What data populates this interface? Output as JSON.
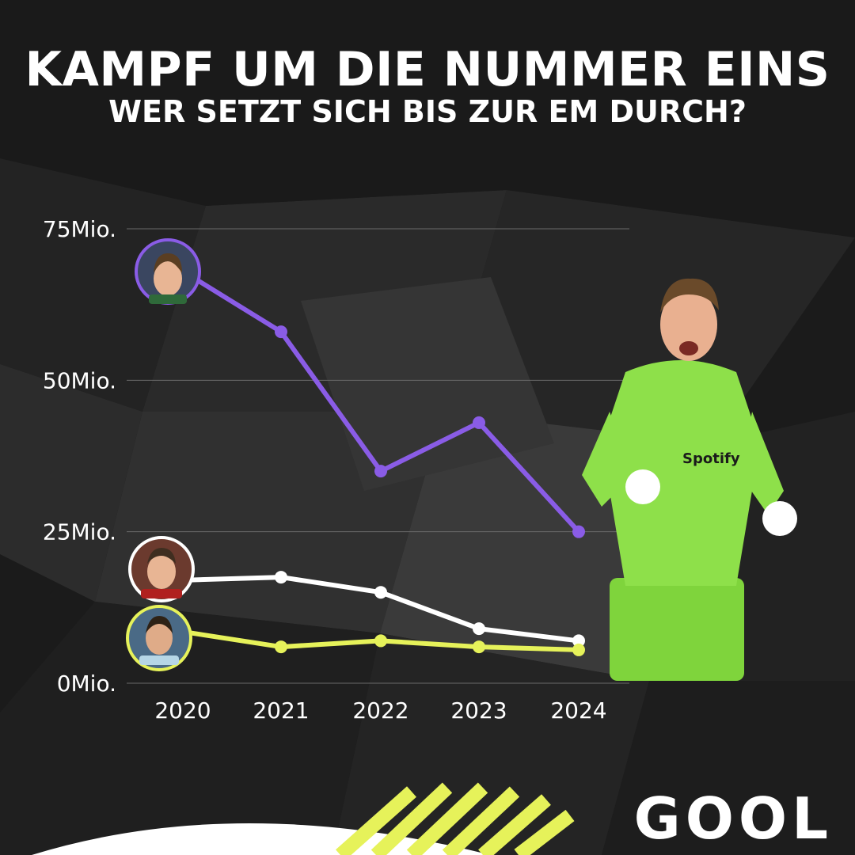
{
  "header": {
    "title": "KAMPF UM DIE NUMMER EINS",
    "subtitle": "WER SETZT SICH BIS ZUR EM DURCH?"
  },
  "brand": {
    "logo_text": "GOOL"
  },
  "colors": {
    "background": "#1b1b1b",
    "purple": "#8a5ce6",
    "white": "#ffffff",
    "yellow": "#e6f25a",
    "jersey": "#8ee04a"
  },
  "chart_data": {
    "type": "line",
    "categories": [
      "2020",
      "2021",
      "2022",
      "2023",
      "2024"
    ],
    "y_tick_labels": [
      "0Mio.",
      "25Mio.",
      "50Mio.",
      "75Mio."
    ],
    "y_ticks": [
      0,
      25,
      50,
      75
    ],
    "ylim": [
      0,
      75
    ],
    "grid": true,
    "series": [
      {
        "key": "purple",
        "color": "#8a5ce6",
        "values": [
          68,
          58,
          35,
          43,
          25
        ]
      },
      {
        "key": "white",
        "color": "#ffffff",
        "values": [
          17,
          17.5,
          15,
          9,
          7
        ]
      },
      {
        "key": "yellow",
        "color": "#e6f25a",
        "values": [
          8.5,
          6,
          7,
          6,
          5.5
        ]
      }
    ]
  }
}
